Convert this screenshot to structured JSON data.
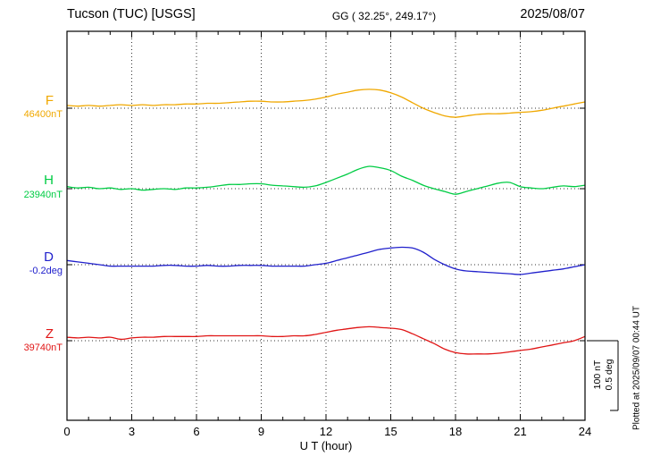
{
  "header": {
    "title": "Tucson (TUC)  [USGS]",
    "coords": "GG ( 32.25°, 249.17°)",
    "date": "2025/08/07"
  },
  "footer": {
    "xlabel": "U T (hour)"
  },
  "side": {
    "scale_nt": "100 nT",
    "scale_deg": "0.5 deg",
    "plotted_at": "Plotted at 2025/09/07 00:44 UT"
  },
  "chart_data": {
    "type": "line",
    "title": "Tucson (TUC) [USGS] magnetogram",
    "date": "2025/08/07",
    "station_coords": "GG ( 32.25°, 249.17°)",
    "xlabel": "U T (hour)",
    "xlim": [
      0,
      24
    ],
    "x_ticks": [
      0,
      3,
      6,
      9,
      12,
      15,
      18,
      21,
      24
    ],
    "x_step_hours": 0.5,
    "grid": "dotted vertical at 3h, dotted baseline per trace",
    "scale_bar": {
      "nT": 100,
      "deg": 0.5
    },
    "series": [
      {
        "name": "F",
        "label": "F",
        "baseline_label": "46400nT",
        "baseline_value": 46400,
        "unit": "nT",
        "color": "#f0a800",
        "offsets": [
          4,
          3,
          4,
          3,
          4,
          5,
          4,
          5,
          4,
          5,
          5,
          6,
          6,
          7,
          7,
          8,
          9,
          10,
          10,
          9,
          9,
          10,
          11,
          13,
          16,
          20,
          23,
          26,
          27,
          26,
          22,
          16,
          8,
          0,
          -6,
          -11,
          -13,
          -11,
          -9,
          -8,
          -8,
          -7,
          -6,
          -5,
          -3,
          0,
          3,
          6,
          9
        ]
      },
      {
        "name": "H",
        "label": "H",
        "baseline_label": "23940nT",
        "baseline_value": 23940,
        "unit": "nT",
        "color": "#00cc44",
        "offsets": [
          3,
          1,
          2,
          0,
          1,
          -1,
          0,
          -2,
          -1,
          0,
          -1,
          1,
          1,
          2,
          4,
          6,
          6,
          7,
          7,
          5,
          4,
          3,
          2,
          4,
          9,
          15,
          21,
          28,
          32,
          30,
          26,
          18,
          12,
          5,
          0,
          -4,
          -8,
          -4,
          0,
          4,
          8,
          9,
          3,
          1,
          0,
          2,
          4,
          3,
          5
        ]
      },
      {
        "name": "D",
        "label": "D",
        "baseline_label": "-0.2deg",
        "baseline_value": -0.2,
        "unit": "deg",
        "color": "#2020cc",
        "offsets": [
          0.03,
          0.02,
          0.01,
          0,
          -0.01,
          -0.01,
          -0.01,
          -0.01,
          -0.01,
          -0.005,
          -0.005,
          -0.01,
          -0.01,
          -0.005,
          -0.01,
          -0.01,
          -0.005,
          -0.005,
          -0.005,
          -0.01,
          -0.01,
          -0.01,
          -0.01,
          0,
          0.01,
          0.03,
          0.05,
          0.07,
          0.09,
          0.11,
          0.12,
          0.125,
          0.12,
          0.09,
          0.04,
          0,
          -0.03,
          -0.045,
          -0.05,
          -0.055,
          -0.06,
          -0.065,
          -0.07,
          -0.06,
          -0.05,
          -0.04,
          -0.03,
          -0.015,
          0
        ]
      },
      {
        "name": "Z",
        "label": "Z",
        "baseline_label": "39740nT",
        "baseline_value": 39740,
        "unit": "nT",
        "color": "#e01515",
        "offsets": [
          5,
          4,
          5,
          4,
          5,
          2,
          4,
          5,
          5,
          6,
          6,
          6,
          6,
          7,
          7,
          7,
          7,
          7,
          7,
          6,
          6,
          7,
          7,
          9,
          12,
          15,
          17,
          19,
          20,
          19,
          18,
          16,
          10,
          3,
          -4,
          -12,
          -17,
          -19,
          -19,
          -19,
          -18,
          -16,
          -14,
          -12,
          -9,
          -6,
          -3,
          0,
          6
        ]
      }
    ]
  }
}
